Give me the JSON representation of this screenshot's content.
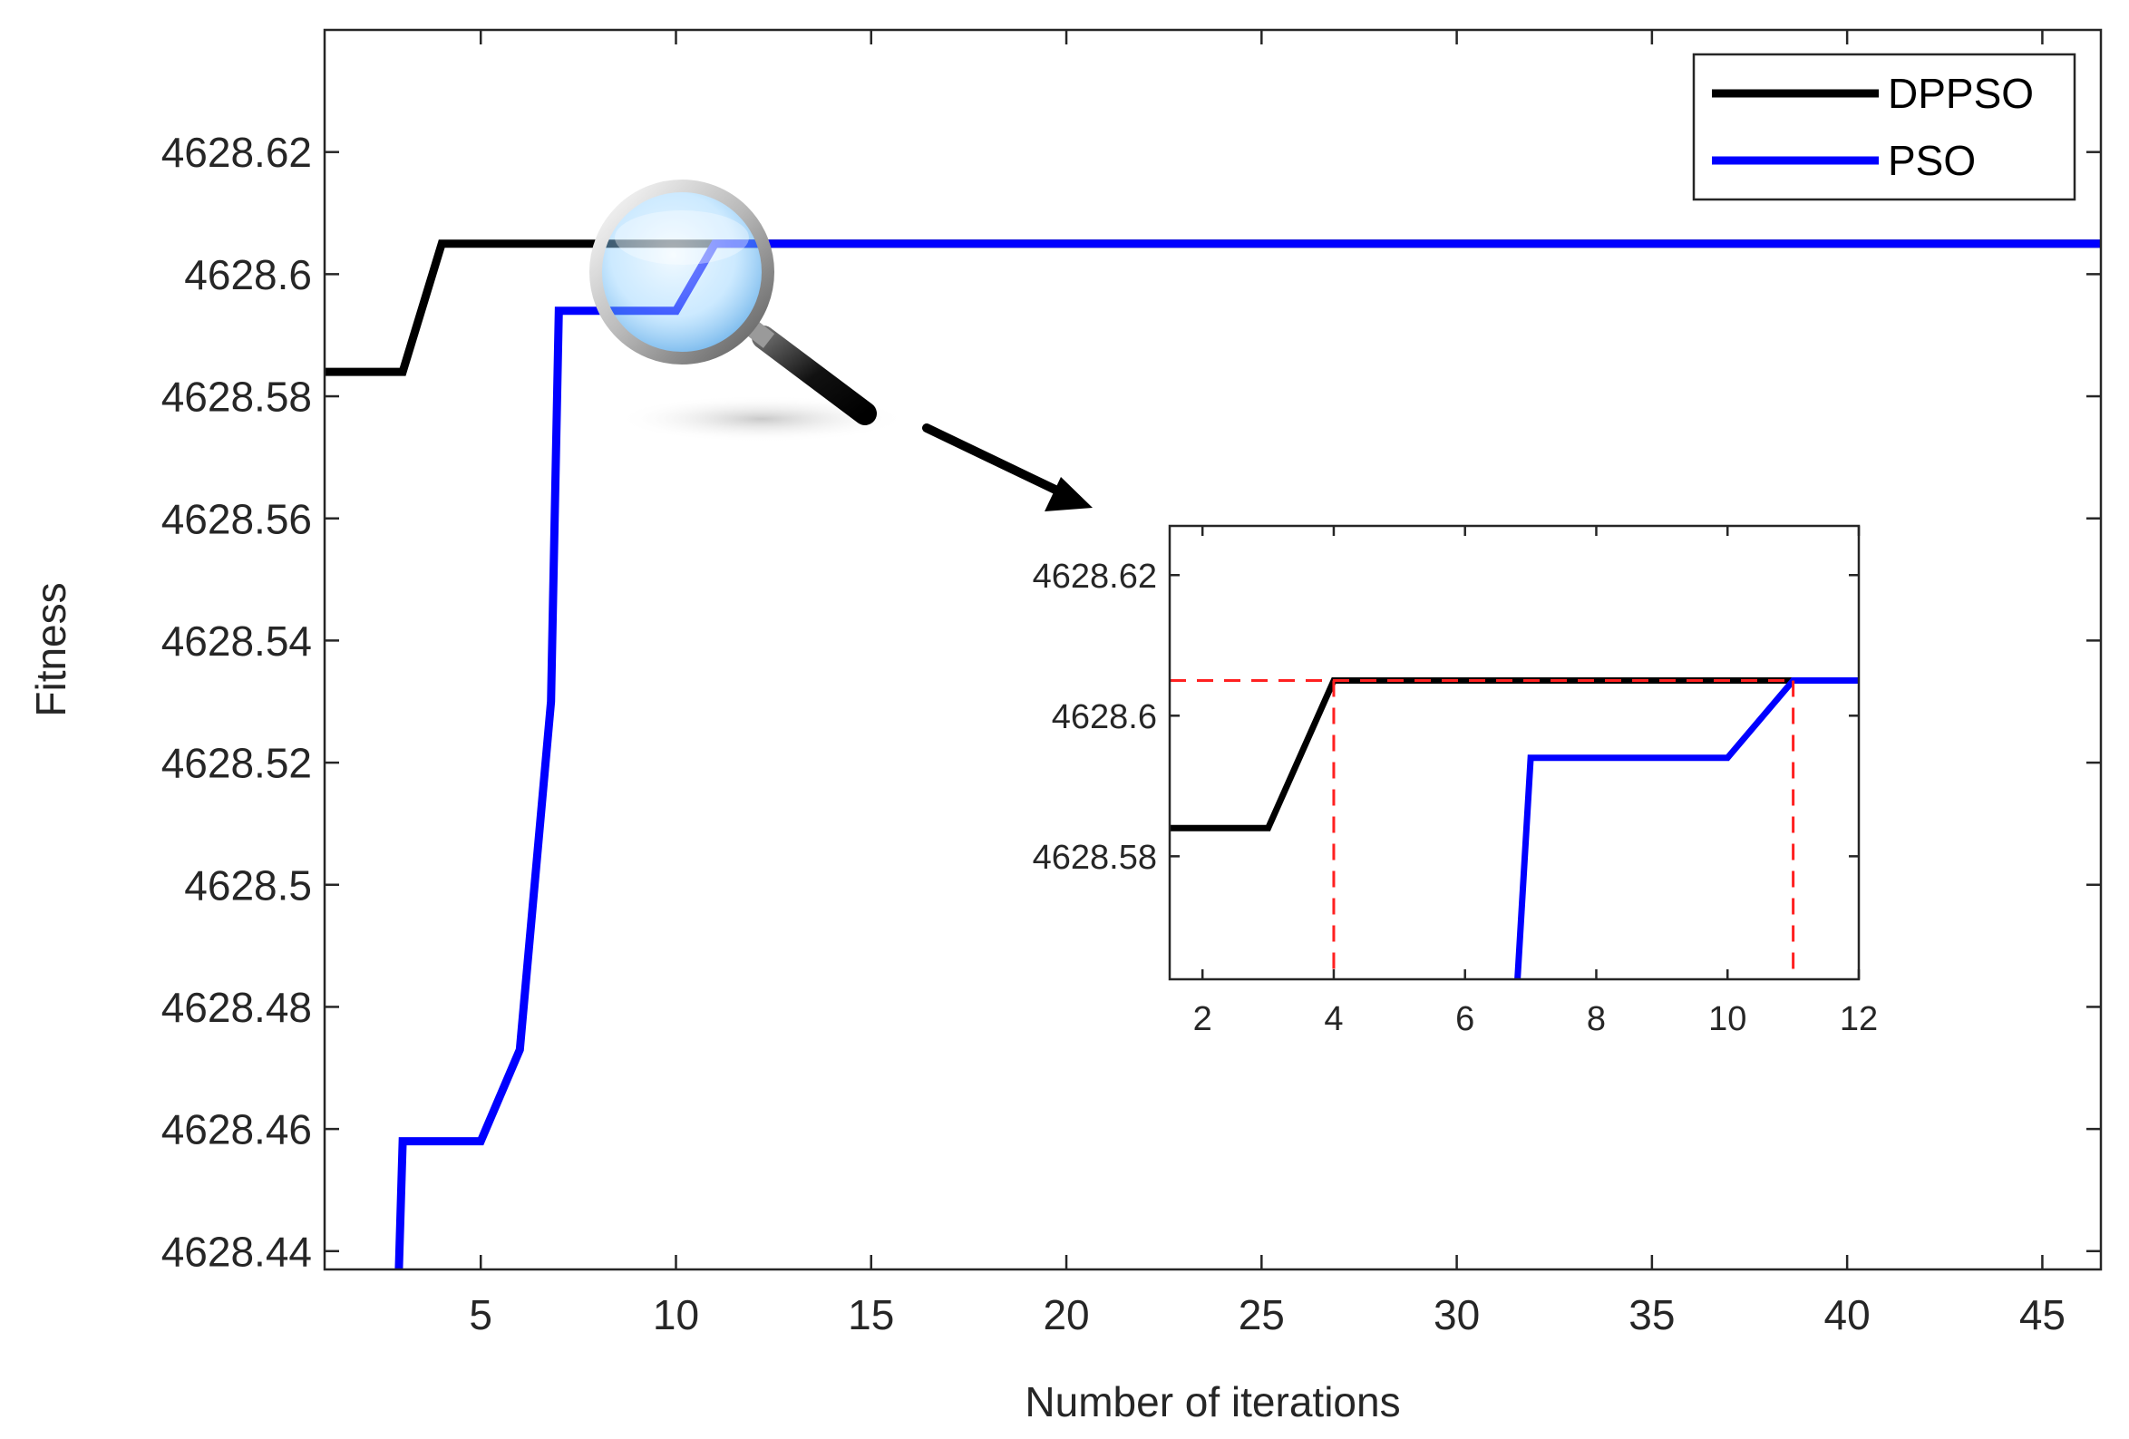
{
  "chart_data": [
    {
      "id": "main",
      "type": "line",
      "title": "",
      "xlabel": "Number of iterations",
      "ylabel": "Fitness",
      "xlim": [
        1,
        46.5
      ],
      "ylim": [
        4628.437,
        4628.64
      ],
      "xticks": [
        5,
        10,
        15,
        20,
        25,
        30,
        35,
        40,
        45
      ],
      "yticks": [
        4628.44,
        4628.46,
        4628.48,
        4628.5,
        4628.52,
        4628.54,
        4628.56,
        4628.58,
        4628.6,
        4628.62
      ],
      "ytick_labels": [
        "4628.44",
        "4628.46",
        "4628.48",
        "4628.5",
        "4628.52",
        "4628.54",
        "4628.56",
        "4628.58",
        "4628.6",
        "4628.62"
      ],
      "grid": false,
      "legend": "top-right",
      "series": [
        {
          "name": "DPPSO",
          "color": "#000000",
          "x": [
            1,
            3,
            4,
            46.5
          ],
          "y": [
            4628.584,
            4628.584,
            4628.605,
            4628.605
          ]
        },
        {
          "name": "PSO",
          "color": "#0000ff",
          "x": [
            2.9,
            3,
            5,
            6,
            6.8,
            7,
            10,
            11,
            46.5
          ],
          "y": [
            4628.4365,
            4628.458,
            4628.458,
            4628.473,
            4628.53,
            4628.594,
            4628.594,
            4628.605,
            4628.605
          ]
        }
      ]
    },
    {
      "id": "inset",
      "type": "line",
      "title": "",
      "xlabel": "",
      "ylabel": "",
      "xlim": [
        1.5,
        12
      ],
      "ylim": [
        4628.5625,
        4628.627
      ],
      "xticks": [
        2,
        4,
        6,
        8,
        10,
        12
      ],
      "yticks": [
        4628.58,
        4628.6,
        4628.62
      ],
      "ytick_labels": [
        "4628.58",
        "4628.6",
        "4628.62"
      ],
      "grid": false,
      "reference_lines": {
        "color": "#ff2020",
        "y": 4628.605,
        "x": [
          4,
          11
        ]
      },
      "series": [
        {
          "name": "DPPSO",
          "color": "#000000",
          "x": [
            1.5,
            3,
            4,
            12
          ],
          "y": [
            4628.584,
            4628.584,
            4628.605,
            4628.605
          ]
        },
        {
          "name": "PSO",
          "color": "#0000ff",
          "x": [
            6.8,
            7,
            10,
            11,
            12
          ],
          "y": [
            4628.5625,
            4628.594,
            4628.594,
            4628.605,
            4628.605
          ]
        }
      ]
    }
  ],
  "colors": {
    "dppso": "#000000",
    "pso": "#0000ff",
    "reference": "#ff2020",
    "axis": "#262626"
  },
  "icons": {
    "magnifier": "magnifier-icon",
    "arrow": "zoom-arrow-icon"
  }
}
